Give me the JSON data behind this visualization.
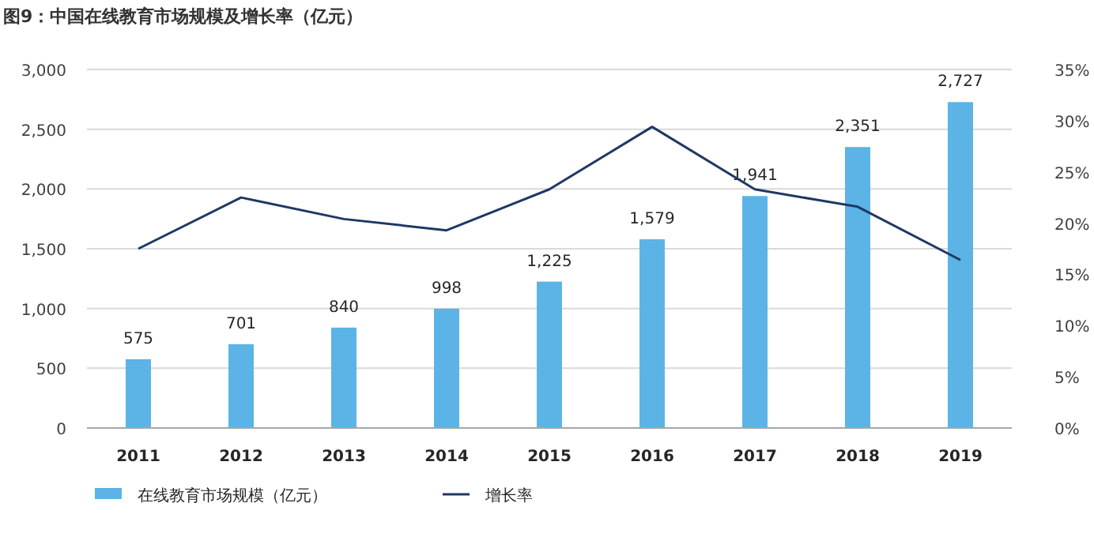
{
  "chart_data": {
    "type": "bar",
    "title": "图9：中国在线教育市场规模及增长率（亿元）",
    "categories": [
      "2011",
      "2012",
      "2013",
      "2014",
      "2015",
      "2016",
      "2017",
      "2018",
      "2019"
    ],
    "series": [
      {
        "name": "在线教育市场规模（亿元）",
        "color": "#5bb4e5",
        "values": [
          575,
          701,
          840,
          998,
          1225,
          1579,
          1941,
          2351,
          2727
        ],
        "value_labels": [
          "575",
          "701",
          "840",
          "998",
          "1,225",
          "1,579",
          "1,941",
          "2,351",
          "2,727"
        ]
      },
      {
        "name": "增长率",
        "type": "line",
        "axis": "y2",
        "color": "#1f3864",
        "values": [
          17.5,
          22.5,
          20.4,
          19.3,
          23.3,
          29.4,
          23.3,
          21.6,
          16.4
        ]
      }
    ],
    "ylim": [
      0,
      3000
    ],
    "yticks": [
      0,
      500,
      {
        "value": 1000,
        "label": "1,000"
      },
      {
        "value": 1500,
        "label": "1,500"
      },
      {
        "value": 2000,
        "label": "2,000"
      },
      {
        "value": 2500,
        "label": "2,500"
      },
      {
        "value": 3000,
        "label": "3,000"
      }
    ],
    "y2lim": [
      0,
      35
    ],
    "y2ticks": [
      {
        "value": 0,
        "label": "0%"
      },
      {
        "value": 5,
        "label": "5%"
      },
      {
        "value": 10,
        "label": "10%"
      },
      {
        "value": 15,
        "label": "15%"
      },
      {
        "value": 20,
        "label": "20%"
      },
      {
        "value": 25,
        "label": "25%"
      },
      {
        "value": 30,
        "label": "30%"
      },
      {
        "value": 35,
        "label": "35%"
      }
    ],
    "grid": "y",
    "legend": "bottom"
  }
}
